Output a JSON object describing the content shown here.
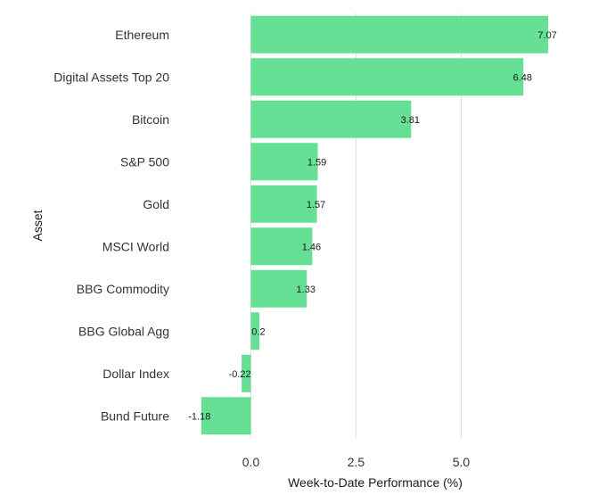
{
  "chart_data": {
    "type": "bar",
    "orientation": "horizontal",
    "title": "",
    "xlabel": "Week-to-Date Performance (%)",
    "ylabel": "Asset",
    "categories": [
      "Ethereum",
      "Digital Assets Top 20",
      "Bitcoin",
      "S&P 500",
      "Gold",
      "MSCI World",
      "BBG Commodity",
      "BBG Global Agg",
      "Dollar Index",
      "Bund Future"
    ],
    "values": [
      7.07,
      6.48,
      3.81,
      1.59,
      1.57,
      1.46,
      1.33,
      0.2,
      -0.22,
      -1.18
    ],
    "value_labels": [
      "7.07",
      "6.48",
      "3.81",
      "1.59",
      "1.57",
      "1.46",
      "1.33",
      "0.2",
      "-0.22",
      "-1.18"
    ],
    "xticks": [
      0,
      2.5,
      5
    ],
    "xtick_labels": [
      "0.0",
      "2.5",
      "5.0"
    ],
    "xlim": [
      -1.6,
      7.3
    ],
    "grid": true,
    "bar_color": "#66e094",
    "grid_color": "#e0e0e0"
  }
}
